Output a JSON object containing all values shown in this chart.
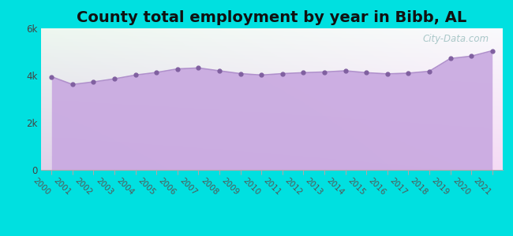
{
  "title": "County total employment by year in Bibb, AL",
  "years": [
    2000,
    2001,
    2002,
    2003,
    2004,
    2005,
    2006,
    2007,
    2008,
    2009,
    2010,
    2011,
    2012,
    2013,
    2014,
    2015,
    2016,
    2017,
    2018,
    2019,
    2020,
    2021
  ],
  "values": [
    3950,
    3620,
    3730,
    3860,
    4020,
    4130,
    4280,
    4320,
    4200,
    4080,
    4020,
    4080,
    4120,
    4150,
    4200,
    4120,
    4070,
    4100,
    4180,
    4720,
    4820,
    5050
  ],
  "ylim": [
    0,
    6000
  ],
  "yticks": [
    0,
    2000,
    4000,
    6000
  ],
  "ytick_labels": [
    "0",
    "2k",
    "4k",
    "6k"
  ],
  "line_color": "#b090cc",
  "fill_color": "#c8a8e0",
  "marker_color": "#8060a0",
  "background_outer": "#00e0e0",
  "title_fontsize": 14,
  "watermark": "City-Data.com"
}
